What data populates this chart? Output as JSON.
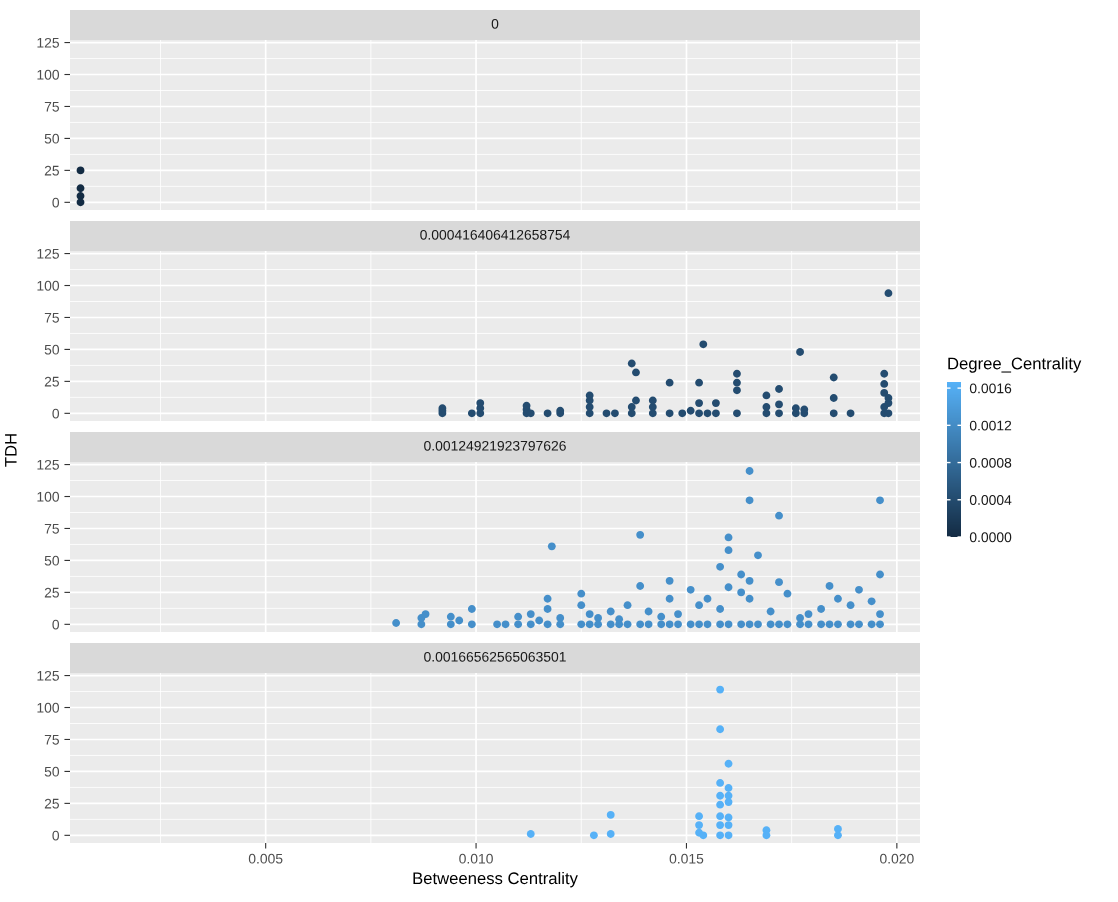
{
  "chart_data": [
    {
      "type": "scatter",
      "title": "0",
      "xlim": [
        0.00035,
        0.02055
      ],
      "ylim": [
        -6,
        127
      ],
      "xticks": [
        {
          "value": 0.005,
          "label": null
        },
        {
          "value": 0.01,
          "label": null
        },
        {
          "value": 0.015,
          "label": null
        },
        {
          "value": 0.02,
          "label": null
        }
      ],
      "yticks": [
        0,
        25,
        50,
        75,
        100,
        125
      ],
      "tick_labels": "y",
      "grid": true,
      "marker": "circle",
      "x": [
        0.0006,
        0.0006,
        0.0006,
        0.0006
      ],
      "values": [
        25,
        11,
        5,
        0
      ],
      "color": "#132b43"
    },
    {
      "type": "scatter",
      "title": "0.000416406412658754",
      "xlim": [
        0.00035,
        0.02055
      ],
      "ylim": [
        -6,
        127
      ],
      "xticks": [
        {
          "value": 0.005,
          "label": null
        },
        {
          "value": 0.01,
          "label": null
        },
        {
          "value": 0.015,
          "label": null
        },
        {
          "value": 0.02,
          "label": null
        }
      ],
      "yticks": [
        0,
        25,
        50,
        75,
        100,
        125
      ],
      "tick_labels": "y",
      "grid": true,
      "marker": "circle",
      "x": [
        0.0092,
        0.0092,
        0.0092,
        0.0099,
        0.0101,
        0.0101,
        0.0101,
        0.0112,
        0.0112,
        0.0112,
        0.0113,
        0.0117,
        0.012,
        0.012,
        0.0127,
        0.0127,
        0.0127,
        0.0127,
        0.0131,
        0.0133,
        0.0137,
        0.0137,
        0.0137,
        0.0138,
        0.0138,
        0.0142,
        0.0142,
        0.0142,
        0.0146,
        0.0146,
        0.0149,
        0.0151,
        0.0153,
        0.0154,
        0.0153,
        0.0153,
        0.0155,
        0.0157,
        0.0157,
        0.0162,
        0.0162,
        0.0162,
        0.0162,
        0.0169,
        0.0169,
        0.0169,
        0.0172,
        0.0172,
        0.0172,
        0.0176,
        0.0176,
        0.0177,
        0.0178,
        0.0178,
        0.0185,
        0.0185,
        0.0185,
        0.0189,
        0.0197,
        0.0197,
        0.0197,
        0.0197,
        0.0197,
        0.0198,
        0.0198,
        0.0198,
        0.0198
      ],
      "values": [
        0,
        2,
        4,
        0,
        0,
        4,
        8,
        0,
        3,
        6,
        0,
        0,
        0,
        2,
        0,
        5,
        10,
        14,
        0,
        0,
        0,
        5,
        39,
        32,
        10,
        0,
        5,
        10,
        0,
        24,
        0,
        2,
        0,
        54,
        24,
        8,
        0,
        0,
        8,
        0,
        18,
        24,
        31,
        0,
        5,
        14,
        0,
        7,
        19,
        0,
        4,
        48,
        0,
        3,
        28,
        12,
        0,
        0,
        0,
        5,
        16,
        23,
        31,
        0,
        8,
        12,
        94
      ],
      "color": "#244c70"
    },
    {
      "type": "scatter",
      "title": "0.00124921923797626",
      "ylabel": "TDH",
      "xlim": [
        0.00035,
        0.02055
      ],
      "ylim": [
        -6,
        127
      ],
      "xticks": [
        {
          "value": 0.005,
          "label": null
        },
        {
          "value": 0.01,
          "label": null
        },
        {
          "value": 0.015,
          "label": null
        },
        {
          "value": 0.02,
          "label": null
        }
      ],
      "yticks": [
        0,
        25,
        50,
        75,
        100,
        125
      ],
      "tick_labels": "y",
      "grid": true,
      "marker": "circle",
      "x": [
        0.0081,
        0.0087,
        0.0087,
        0.0088,
        0.0094,
        0.0094,
        0.0096,
        0.0099,
        0.0099,
        0.0105,
        0.0107,
        0.011,
        0.011,
        0.0113,
        0.0113,
        0.0115,
        0.0117,
        0.0117,
        0.0117,
        0.0118,
        0.012,
        0.012,
        0.0125,
        0.0125,
        0.0125,
        0.0127,
        0.0127,
        0.0129,
        0.0129,
        0.0132,
        0.0132,
        0.0134,
        0.0134,
        0.0136,
        0.0136,
        0.0139,
        0.0139,
        0.0139,
        0.0141,
        0.0141,
        0.0144,
        0.0144,
        0.0146,
        0.0146,
        0.0146,
        0.0148,
        0.0148,
        0.0151,
        0.0151,
        0.0153,
        0.0153,
        0.0155,
        0.0155,
        0.0158,
        0.0158,
        0.0158,
        0.016,
        0.016,
        0.016,
        0.016,
        0.0163,
        0.0163,
        0.0163,
        0.0165,
        0.0165,
        0.0165,
        0.0165,
        0.0165,
        0.0167,
        0.0167,
        0.017,
        0.017,
        0.0172,
        0.0172,
        0.0172,
        0.0174,
        0.0174,
        0.0177,
        0.0177,
        0.0179,
        0.0179,
        0.0182,
        0.0182,
        0.0184,
        0.0184,
        0.0186,
        0.0186,
        0.0189,
        0.0189,
        0.0191,
        0.0191,
        0.0194,
        0.0194,
        0.0196,
        0.0196,
        0.0196,
        0.0196
      ],
      "values": [
        1,
        0,
        5,
        8,
        0,
        6,
        3,
        0,
        12,
        0,
        0,
        0,
        6,
        0,
        8,
        3,
        0,
        12,
        20,
        61,
        0,
        5,
        0,
        15,
        24,
        0,
        8,
        0,
        5,
        0,
        10,
        0,
        4,
        0,
        15,
        0,
        30,
        70,
        0,
        10,
        0,
        6,
        0,
        34,
        20,
        0,
        8,
        0,
        27,
        0,
        15,
        0,
        20,
        0,
        12,
        45,
        0,
        29,
        58,
        68,
        0,
        39,
        25,
        0,
        120,
        97,
        34,
        20,
        0,
        54,
        0,
        10,
        0,
        85,
        33,
        0,
        24,
        0,
        5,
        0,
        8,
        0,
        12,
        0,
        30,
        0,
        20,
        0,
        15,
        0,
        27,
        0,
        18,
        0,
        97,
        39,
        8
      ],
      "color": "#458fca"
    },
    {
      "type": "scatter",
      "title": "0.00166562565063501",
      "xlabel": "Betweeness Centrality",
      "clabel": "Degree_Centrality",
      "xlim": [
        0.00035,
        0.02055
      ],
      "ylim": [
        -6,
        127
      ],
      "xticks": [
        {
          "value": 0.005,
          "label": "0.005"
        },
        {
          "value": 0.01,
          "label": "0.010"
        },
        {
          "value": 0.015,
          "label": "0.015"
        },
        {
          "value": 0.02,
          "label": "0.020"
        }
      ],
      "yticks": [
        0,
        25,
        50,
        75,
        100,
        125
      ],
      "grid": true,
      "marker": "circle",
      "clim": [
        0,
        0.00166562565063501
      ],
      "cticks": [
        {
          "value": 0,
          "label": "0.0000"
        },
        {
          "value": 0.0004,
          "label": "0.0004"
        },
        {
          "value": 0.0008,
          "label": "0.0008"
        },
        {
          "value": 0.0012,
          "label": "0.0012"
        },
        {
          "value": 0.0016,
          "label": "0.0016"
        }
      ],
      "x": [
        0.0113,
        0.0128,
        0.0132,
        0.0132,
        0.0153,
        0.0153,
        0.0153,
        0.0154,
        0.0158,
        0.0158,
        0.016,
        0.0158,
        0.016,
        0.0158,
        0.016,
        0.016,
        0.0158,
        0.0158,
        0.016,
        0.0158,
        0.0158,
        0.016,
        0.016,
        0.0169,
        0.0169,
        0.0186,
        0.0186
      ],
      "values": [
        1,
        0,
        1,
        16,
        15,
        8,
        2,
        0,
        114,
        83,
        56,
        41,
        37,
        31,
        31,
        26,
        24,
        15,
        14,
        8,
        0,
        8,
        0,
        0,
        4,
        0,
        5
      ],
      "color": "#56b1f7"
    }
  ]
}
